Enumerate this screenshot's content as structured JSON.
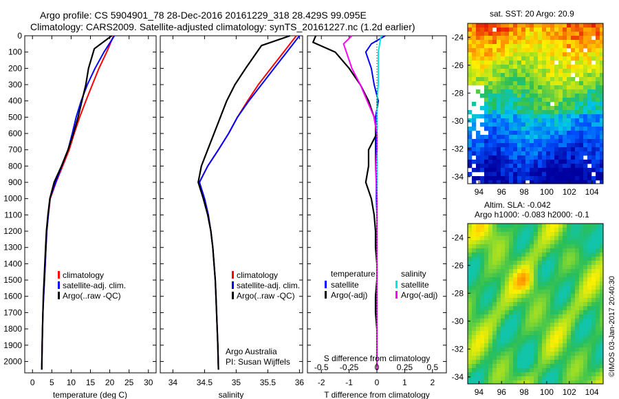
{
  "header": {
    "line1": "Argo profile: CS 5904901_78 28-Dec-2016 20161229_318 28.429S 99.095E",
    "line2": "Climatology: CARS2009. Satellite-adjusted climatology: synTS_20161227.nc (1.2d earlier)"
  },
  "colors": {
    "climatology": "#ff0000",
    "satellite": "#0000ff",
    "argo": "#000000",
    "sat_salinity": "#00e5e5",
    "argo_salinity": "#ff00ff"
  },
  "depth_ticks": [
    0,
    100,
    200,
    300,
    400,
    500,
    600,
    700,
    800,
    900,
    1000,
    1100,
    1200,
    1300,
    1400,
    1500,
    1600,
    1700,
    1800,
    1900,
    2000
  ],
  "temperature": {
    "xlabel": "temperature (deg C)",
    "xticks": [
      0,
      5,
      10,
      15,
      20,
      25,
      30
    ],
    "legend": [
      "climatology",
      "satellite-adj. clim.",
      "Argo(..raw -QC)"
    ],
    "chart_data": {
      "type": "line",
      "xlim": [
        -2,
        32
      ],
      "ylim": [
        2070,
        0
      ],
      "series": [
        {
          "name": "climatology",
          "color": "#ff0000",
          "x": [
            21.0,
            19.2,
            17.2,
            15.5,
            13.8,
            12.2,
            10.8,
            9.5,
            7.8,
            6.1,
            4.6,
            4.1,
            3.7,
            3.5,
            3.3,
            3.1,
            2.9,
            2.7,
            2.6,
            2.5,
            2.4
          ],
          "y": [
            0,
            100,
            200,
            300,
            400,
            500,
            600,
            700,
            800,
            900,
            1000,
            1100,
            1200,
            1300,
            1400,
            1500,
            1600,
            1700,
            1800,
            1900,
            2050
          ]
        },
        {
          "name": "satellite-adj. clim.",
          "color": "#0000ff",
          "x": [
            21.2,
            18.5,
            16.2,
            14.2,
            12.6,
            11.3,
            10.3,
            9.2,
            7.6,
            6.0,
            4.5,
            4.1,
            3.7,
            3.5,
            3.3,
            3.1,
            2.9,
            2.7,
            2.6,
            2.5,
            2.4
          ],
          "y": [
            0,
            100,
            200,
            300,
            400,
            500,
            600,
            700,
            800,
            900,
            1000,
            1100,
            1200,
            1300,
            1400,
            1500,
            1600,
            1700,
            1800,
            1900,
            2050
          ]
        },
        {
          "name": "Argo(..raw -QC)",
          "color": "#000000",
          "x": [
            20.5,
            16.0,
            14.5,
            13.8,
            12.8,
            11.8,
            10.6,
            9.2,
            7.5,
            5.6,
            4.5,
            4.0,
            3.6,
            3.4,
            3.2,
            3.0,
            2.8,
            2.7,
            2.6,
            2.5,
            2.4
          ],
          "y": [
            0,
            80,
            200,
            300,
            400,
            500,
            600,
            700,
            800,
            900,
            1000,
            1100,
            1200,
            1300,
            1400,
            1500,
            1600,
            1700,
            1800,
            1900,
            2050
          ]
        }
      ]
    }
  },
  "salinity": {
    "xlabel": "salinity",
    "xticks": [
      34,
      34.5,
      35,
      35.5,
      36
    ],
    "legend": [
      "climatology",
      "satellite-adj. clim.",
      "Argo(..raw -QC)"
    ],
    "credit1": "Argo Australia",
    "credit2": "PI: Susan Wijffels",
    "chart_data": {
      "type": "line",
      "xlim": [
        33.8,
        36.05
      ],
      "ylim": [
        2070,
        0
      ],
      "series": [
        {
          "name": "climatology",
          "color": "#ff0000",
          "x": [
            35.95,
            35.75,
            35.55,
            35.35,
            35.18,
            35.02,
            34.88,
            34.72,
            34.55,
            34.42,
            34.5,
            34.56,
            34.6,
            34.63,
            34.65,
            34.67,
            34.68,
            34.69,
            34.7,
            34.71,
            34.72
          ],
          "y": [
            0,
            100,
            200,
            300,
            400,
            500,
            600,
            700,
            800,
            900,
            1000,
            1100,
            1200,
            1300,
            1400,
            1500,
            1600,
            1700,
            1800,
            1900,
            2050
          ]
        },
        {
          "name": "satellite-adj. clim.",
          "color": "#0000ff",
          "x": [
            36.0,
            35.8,
            35.6,
            35.4,
            35.2,
            35.02,
            34.88,
            34.72,
            34.55,
            34.42,
            34.5,
            34.56,
            34.6,
            34.63,
            34.65,
            34.67,
            34.68,
            34.69,
            34.7,
            34.71,
            34.72
          ],
          "y": [
            0,
            100,
            200,
            300,
            400,
            500,
            600,
            700,
            800,
            900,
            1000,
            1100,
            1200,
            1300,
            1400,
            1500,
            1600,
            1700,
            1800,
            1900,
            2050
          ]
        },
        {
          "name": "Argo(..raw -QC)",
          "color": "#000000",
          "x": [
            35.85,
            35.4,
            35.15,
            34.98,
            34.85,
            34.75,
            34.65,
            34.55,
            34.45,
            34.4,
            34.48,
            34.55,
            34.6,
            34.63,
            34.65,
            34.67,
            34.68,
            34.69,
            34.7,
            34.71,
            34.72
          ],
          "y": [
            0,
            60,
            200,
            300,
            400,
            500,
            600,
            700,
            800,
            900,
            1000,
            1100,
            1200,
            1300,
            1400,
            1500,
            1600,
            1700,
            1800,
            1900,
            2050
          ]
        }
      ]
    }
  },
  "difference": {
    "xlabel_top": "S difference from climatology",
    "xlabel_bottom": "T difference from climatology",
    "xticks_S": [
      "-0.5",
      "-0.25",
      "0",
      "0.25",
      "0.5"
    ],
    "xticks_T": [
      -2,
      -1,
      0,
      1,
      2
    ],
    "legend_temp_title": "temperature",
    "legend_sal_title": "salinity",
    "legend_temp": [
      "satellite",
      "Argo(-adj)"
    ],
    "legend_sal": [
      "satellite",
      "Argo(-adj)"
    ],
    "chart_data": {
      "type": "line",
      "xlim": [
        -2.5,
        2.5
      ],
      "ylim": [
        2070,
        0
      ],
      "series": [
        {
          "name": "T satellite",
          "color": "#0000ff",
          "x": [
            0.3,
            -0.2,
            -0.4,
            -0.2,
            -0.1,
            0.05,
            -0.05,
            -0.05,
            -0.05,
            -0.05,
            -0.02,
            -0.02,
            0,
            0,
            0,
            0,
            0,
            0,
            0,
            0,
            0
          ],
          "y": [
            0,
            50,
            100,
            200,
            300,
            400,
            500,
            600,
            700,
            800,
            900,
            1000,
            1100,
            1200,
            1300,
            1400,
            1500,
            1600,
            1700,
            1800,
            2050
          ]
        },
        {
          "name": "T Argo(-adj)",
          "color": "#000000",
          "x": [
            -2.2,
            -2.3,
            -1.5,
            -1.0,
            -0.6,
            -0.3,
            -0.1,
            0,
            -0.3,
            -0.3,
            -0.4,
            -0.2,
            -0.1,
            -0.05,
            -0.05,
            0,
            0,
            -0.05,
            -0.05,
            0,
            0
          ],
          "y": [
            0,
            40,
            100,
            200,
            300,
            400,
            500,
            600,
            700,
            800,
            900,
            1000,
            1100,
            1200,
            1300,
            1400,
            1500,
            1600,
            1700,
            1800,
            2050
          ]
        },
        {
          "name": "S satellite",
          "color": "#00e5e5",
          "x": [
            0.15,
            0.1,
            0.05,
            0.05,
            0.05,
            0,
            0,
            0,
            0,
            0,
            0,
            0,
            0,
            0,
            0,
            0,
            0,
            0,
            0,
            0,
            0
          ],
          "y": [
            0,
            50,
            100,
            200,
            300,
            400,
            500,
            600,
            700,
            800,
            900,
            1000,
            1100,
            1200,
            1300,
            1400,
            1500,
            1600,
            1700,
            1800,
            2050
          ]
        },
        {
          "name": "S Argo(-adj)",
          "color": "#ff00ff",
          "x": [
            -0.9,
            -1.2,
            -1.1,
            -0.9,
            -0.6,
            -0.35,
            -0.1,
            0,
            0,
            -0.05,
            -0.02,
            0,
            0,
            0,
            0,
            0,
            0,
            0,
            0,
            0,
            0
          ],
          "y": [
            0,
            50,
            100,
            200,
            300,
            400,
            500,
            600,
            700,
            800,
            900,
            1000,
            1100,
            1200,
            1300,
            1400,
            1500,
            1600,
            1700,
            1800,
            2050
          ]
        }
      ]
    }
  },
  "sst_map": {
    "title": "sat. SST: 20 Argo: 20.9",
    "xticks": [
      94,
      96,
      98,
      100,
      102,
      104
    ],
    "yticks": [
      -24,
      -26,
      -28,
      -30,
      -32,
      -34
    ],
    "chart_data": {
      "type": "heatmap",
      "xlim": [
        93,
        105
      ],
      "ylim": [
        -34.5,
        -23
      ]
    }
  },
  "sla_map": {
    "title1": "Altim. SLA: -0.042",
    "title2": "Argo h1000: -0.083 h2000: -0.1",
    "xticks": [
      94,
      96,
      98,
      100,
      102,
      104
    ],
    "yticks": [
      -24,
      -26,
      -28,
      -30,
      -32,
      -34
    ],
    "chart_data": {
      "type": "heatmap",
      "xlim": [
        93,
        105
      ],
      "ylim": [
        -34.5,
        -23
      ]
    }
  },
  "footer": {
    "stamp": "©IMOS 03-Jan-2017 20:40:30"
  }
}
